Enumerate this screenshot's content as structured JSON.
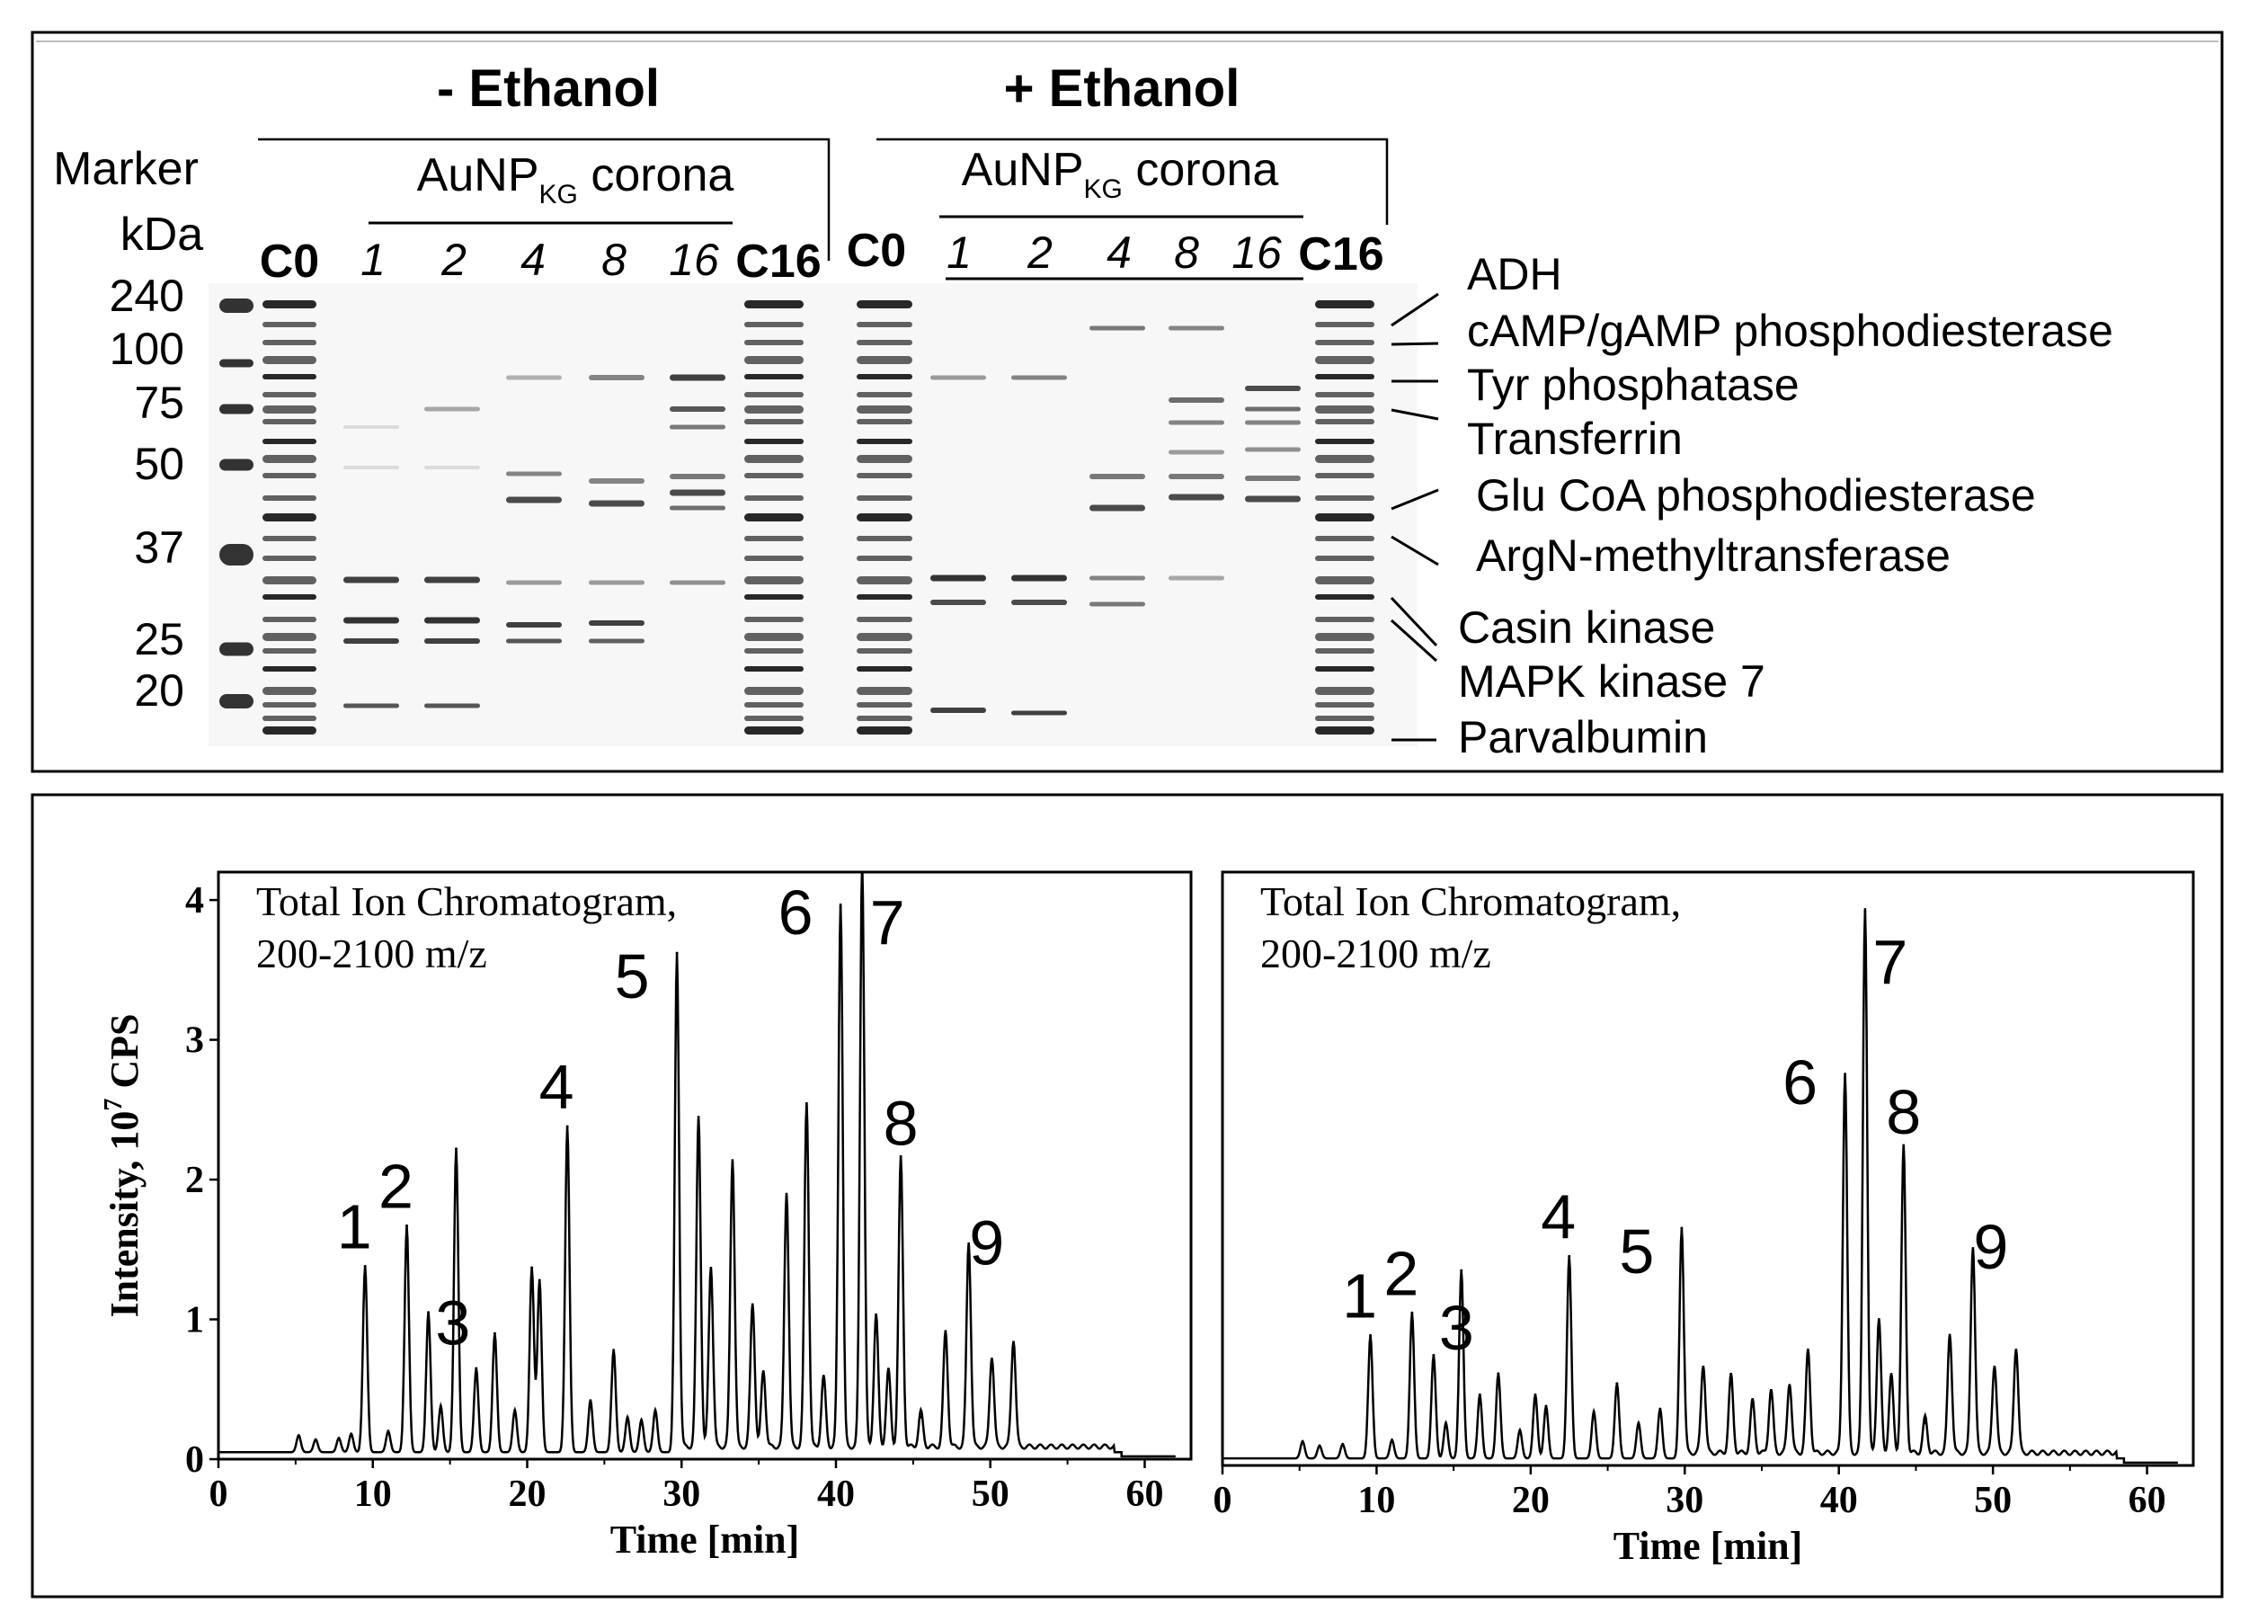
{
  "gel": {
    "title_minus": "- Ethanol",
    "title_plus": "+ Ethanol",
    "marker_label": "Marker",
    "kda_label": "kDa",
    "marker_values": [
      "240",
      "100",
      "75",
      "50",
      "37",
      "25",
      "20"
    ],
    "corona_prefix": "AuNP",
    "corona_sub": "KG",
    "corona_suffix": " corona",
    "lanes": [
      "C0",
      "1",
      "2",
      "4",
      "8",
      "16",
      "C16"
    ],
    "proteins": [
      "ADH",
      "cAMP/gAMP phosphodiesterase",
      "Tyr phosphatase",
      "Transferrin",
      "Glu CoA phosphodiesterase",
      "ArgN-methyltransferase",
      "Casin kinase",
      "MAPK kinase 7",
      "Parvalbumin"
    ]
  },
  "chart_data": [
    {
      "type": "line",
      "title": "Total Ion Chromatogram,",
      "subtitle": "200-2100 m/z",
      "xlabel": "Time [min]",
      "ylabel": "Intensity, 10^7 CPS",
      "ylabel_base": "Intensity, 10",
      "ylabel_exp": "7",
      "ylabel_unit": " CPS",
      "xlim": [
        0,
        63
      ],
      "ylim": [
        0,
        4.2
      ],
      "xticks": [
        "0",
        "10",
        "20",
        "30",
        "40",
        "50",
        "60"
      ],
      "yticks": [
        "0",
        "1",
        "2",
        "3",
        "4"
      ],
      "baseline": 0.05,
      "peaks": [
        {
          "x": 5.2,
          "y": 0.17
        },
        {
          "x": 6.3,
          "y": 0.14
        },
        {
          "x": 7.8,
          "y": 0.15
        },
        {
          "x": 8.6,
          "y": 0.18
        },
        {
          "x": 9.5,
          "y": 1.38
        },
        {
          "x": 11.0,
          "y": 0.2
        },
        {
          "x": 12.2,
          "y": 1.67
        },
        {
          "x": 13.6,
          "y": 1.05
        },
        {
          "x": 14.4,
          "y": 0.38
        },
        {
          "x": 15.4,
          "y": 2.22
        },
        {
          "x": 16.7,
          "y": 0.65
        },
        {
          "x": 17.9,
          "y": 0.9
        },
        {
          "x": 19.2,
          "y": 0.35
        },
        {
          "x": 20.3,
          "y": 1.37
        },
        {
          "x": 20.8,
          "y": 1.28
        },
        {
          "x": 22.6,
          "y": 2.38
        },
        {
          "x": 24.1,
          "y": 0.42
        },
        {
          "x": 25.6,
          "y": 0.78
        },
        {
          "x": 26.5,
          "y": 0.3
        },
        {
          "x": 27.4,
          "y": 0.28
        },
        {
          "x": 28.3,
          "y": 0.35
        },
        {
          "x": 29.7,
          "y": 3.62
        },
        {
          "x": 31.1,
          "y": 2.42
        },
        {
          "x": 31.9,
          "y": 1.35
        },
        {
          "x": 33.3,
          "y": 2.12
        },
        {
          "x": 34.6,
          "y": 1.08
        },
        {
          "x": 35.3,
          "y": 0.6
        },
        {
          "x": 36.8,
          "y": 1.88
        },
        {
          "x": 38.1,
          "y": 2.52
        },
        {
          "x": 39.2,
          "y": 0.55
        },
        {
          "x": 40.3,
          "y": 3.95
        },
        {
          "x": 41.7,
          "y": 4.25
        },
        {
          "x": 42.6,
          "y": 1.0
        },
        {
          "x": 43.4,
          "y": 0.6
        },
        {
          "x": 44.2,
          "y": 2.12
        },
        {
          "x": 45.5,
          "y": 0.3
        },
        {
          "x": 47.1,
          "y": 0.88
        },
        {
          "x": 48.6,
          "y": 1.52
        },
        {
          "x": 50.1,
          "y": 0.7
        },
        {
          "x": 51.5,
          "y": 0.82
        }
      ],
      "labels": [
        {
          "text": "1",
          "x": 9.5,
          "y": 1.38
        },
        {
          "text": "2",
          "x": 12.2,
          "y": 1.67
        },
        {
          "text": "3",
          "x": 16.7,
          "y": 0.65
        },
        {
          "text": "4",
          "x": 22.6,
          "y": 2.38
        },
        {
          "text": "5",
          "x": 29.7,
          "y": 3.62
        },
        {
          "text": "6",
          "x": 40.3,
          "y": 3.95
        },
        {
          "text": "7",
          "x": 41.7,
          "y": 4.25
        },
        {
          "text": "8",
          "x": 44.2,
          "y": 2.12
        },
        {
          "text": "9",
          "x": 48.6,
          "y": 1.52
        }
      ]
    },
    {
      "type": "line",
      "title": "Total Ion Chromatogram,",
      "subtitle": "200-2100 m/z",
      "xlabel": "Time [min]",
      "ylabel": "",
      "xlim": [
        0,
        63
      ],
      "ylim": [
        0,
        4.2
      ],
      "xticks": [
        "0",
        "10",
        "20",
        "30",
        "40",
        "50",
        "60"
      ],
      "baseline": 0.05,
      "peaks": [
        {
          "x": 5.2,
          "y": 0.17
        },
        {
          "x": 6.3,
          "y": 0.14
        },
        {
          "x": 7.8,
          "y": 0.15
        },
        {
          "x": 9.6,
          "y": 0.92
        },
        {
          "x": 11.0,
          "y": 0.18
        },
        {
          "x": 12.3,
          "y": 1.08
        },
        {
          "x": 13.7,
          "y": 0.78
        },
        {
          "x": 14.5,
          "y": 0.3
        },
        {
          "x": 15.5,
          "y": 1.38
        },
        {
          "x": 16.7,
          "y": 0.5
        },
        {
          "x": 17.9,
          "y": 0.65
        },
        {
          "x": 19.3,
          "y": 0.25
        },
        {
          "x": 20.3,
          "y": 0.5
        },
        {
          "x": 21.0,
          "y": 0.42
        },
        {
          "x": 22.5,
          "y": 1.48
        },
        {
          "x": 24.1,
          "y": 0.38
        },
        {
          "x": 25.6,
          "y": 0.58
        },
        {
          "x": 27.0,
          "y": 0.3
        },
        {
          "x": 28.4,
          "y": 0.4
        },
        {
          "x": 29.8,
          "y": 1.68
        },
        {
          "x": 31.2,
          "y": 0.68
        },
        {
          "x": 33.0,
          "y": 0.6
        },
        {
          "x": 34.4,
          "y": 0.42
        },
        {
          "x": 35.6,
          "y": 0.5
        },
        {
          "x": 36.8,
          "y": 0.55
        },
        {
          "x": 38.0,
          "y": 0.78
        },
        {
          "x": 40.4,
          "y": 2.75
        },
        {
          "x": 41.7,
          "y": 3.92
        },
        {
          "x": 42.6,
          "y": 1.0
        },
        {
          "x": 43.4,
          "y": 0.6
        },
        {
          "x": 44.2,
          "y": 2.22
        },
        {
          "x": 45.6,
          "y": 0.3
        },
        {
          "x": 47.2,
          "y": 0.9
        },
        {
          "x": 48.7,
          "y": 1.52
        },
        {
          "x": 50.1,
          "y": 0.68
        },
        {
          "x": 51.5,
          "y": 0.8
        }
      ],
      "labels": [
        {
          "text": "1",
          "x": 9.6,
          "y": 0.92
        },
        {
          "text": "2",
          "x": 12.3,
          "y": 1.08
        },
        {
          "text": "3",
          "x": 16.7,
          "y": 0.5
        },
        {
          "text": "4",
          "x": 22.5,
          "y": 1.48
        },
        {
          "text": "5",
          "x": 29.8,
          "y": 1.68
        },
        {
          "text": "6",
          "x": 40.4,
          "y": 2.75
        },
        {
          "text": "7",
          "x": 41.7,
          "y": 3.92
        },
        {
          "text": "8",
          "x": 44.2,
          "y": 2.22
        },
        {
          "text": "9",
          "x": 48.7,
          "y": 1.52
        }
      ]
    }
  ]
}
